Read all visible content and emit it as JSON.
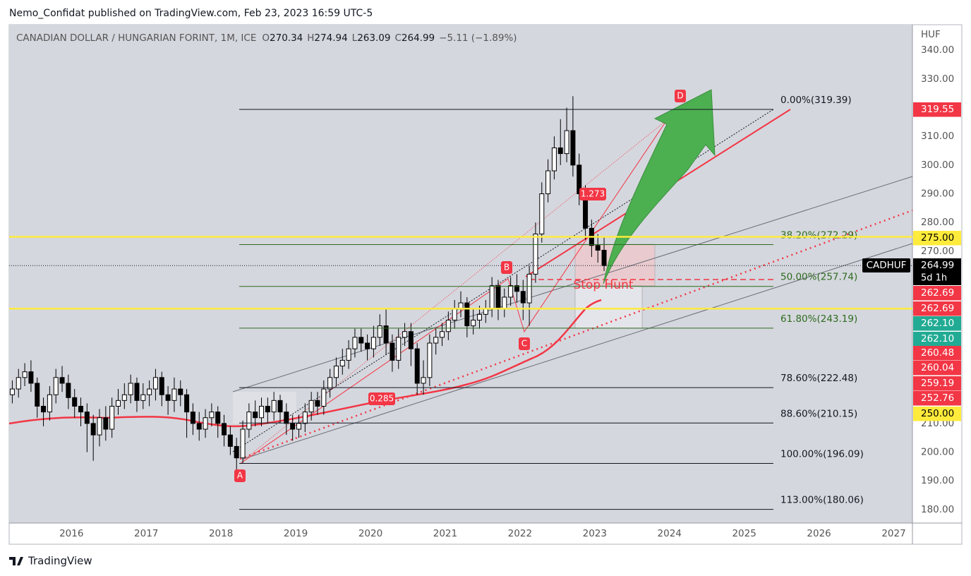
{
  "header": {
    "publisher": "Nemo_Confidat published on TradingView.com, Feb 23, 2023 16:59 UTC-5"
  },
  "footer": {
    "brand": "TradingView"
  },
  "chart_data": {
    "type": "candlestick",
    "title": "CANADIAN DOLLAR / HUNGARIAN FORINT, 1M, ICE",
    "ohlc": [
      {
        "key": "O",
        "value": 270.34
      },
      {
        "key": "H",
        "value": 274.94
      },
      {
        "key": "L",
        "value": 263.09
      },
      {
        "key": "C",
        "value": 264.99
      }
    ],
    "change": "−5.11 (−1.89%)",
    "y_axis_label": "HUF",
    "x": [
      "2015-03",
      "2015-04",
      "2015-05",
      "2015-06",
      "2015-07",
      "2015-08",
      "2015-09",
      "2015-10",
      "2015-11",
      "2015-12",
      "2016-01",
      "2016-02",
      "2016-03",
      "2016-04",
      "2016-05",
      "2016-06",
      "2016-07",
      "2016-08",
      "2016-09",
      "2016-10",
      "2016-11",
      "2016-12",
      "2017-01",
      "2017-02",
      "2017-03",
      "2017-04",
      "2017-05",
      "2017-06",
      "2017-07",
      "2017-08",
      "2017-09",
      "2017-10",
      "2017-11",
      "2017-12",
      "2018-01",
      "2018-02",
      "2018-03",
      "2018-04",
      "2018-05",
      "2018-06",
      "2018-07",
      "2018-08",
      "2018-09",
      "2018-10",
      "2018-11",
      "2018-12",
      "2019-01",
      "2019-02",
      "2019-03",
      "2019-04",
      "2019-05",
      "2019-06",
      "2019-07",
      "2019-08",
      "2019-09",
      "2019-10",
      "2019-11",
      "2019-12",
      "2020-01",
      "2020-02",
      "2020-03",
      "2020-04",
      "2020-05",
      "2020-06",
      "2020-07",
      "2020-08",
      "2020-09",
      "2020-10",
      "2020-11",
      "2020-12",
      "2021-01",
      "2021-02",
      "2021-03",
      "2021-04",
      "2021-05",
      "2021-06",
      "2021-07",
      "2021-08",
      "2021-09",
      "2021-10",
      "2021-11",
      "2021-12",
      "2022-01",
      "2022-02",
      "2022-03",
      "2022-04",
      "2022-05",
      "2022-06",
      "2022-07",
      "2022-08",
      "2022-09",
      "2022-10",
      "2022-11",
      "2022-12",
      "2023-01",
      "2023-02"
    ],
    "open": [
      220,
      222,
      226,
      228,
      224,
      216,
      214,
      220,
      226,
      224,
      219,
      216,
      214,
      210,
      206,
      212,
      208,
      216,
      218,
      220,
      224,
      218,
      220,
      222,
      226,
      220,
      218,
      222,
      220,
      214,
      210,
      208,
      212,
      214,
      210,
      206,
      202,
      198,
      208,
      214,
      212,
      216,
      214,
      218,
      214,
      210,
      208,
      210,
      214,
      218,
      216,
      222,
      226,
      230,
      232,
      236,
      240,
      238,
      236,
      240,
      244,
      238,
      232,
      240,
      242,
      236,
      224,
      226,
      238,
      240,
      242,
      246,
      250,
      252,
      244,
      246,
      248,
      250,
      258,
      250,
      254,
      258,
      256,
      252,
      262,
      276,
      290,
      298,
      306,
      304,
      312,
      300,
      290,
      278,
      272,
      270.34
    ],
    "high": [
      225,
      229,
      231,
      232,
      226,
      219,
      223,
      229,
      230,
      227,
      222,
      219,
      217,
      213,
      215,
      216,
      219,
      222,
      224,
      227,
      226,
      224,
      225,
      229,
      228,
      223,
      226,
      225,
      222,
      217,
      214,
      215,
      217,
      216,
      213,
      209,
      205,
      211,
      217,
      218,
      219,
      219,
      221,
      220,
      217,
      213,
      213,
      217,
      221,
      221,
      225,
      229,
      233,
      236,
      239,
      243,
      243,
      241,
      244,
      248,
      250,
      241,
      243,
      245,
      245,
      238,
      232,
      241,
      243,
      245,
      249,
      253,
      256,
      254,
      250,
      251,
      253,
      261,
      260,
      257,
      261,
      262,
      260,
      265,
      280,
      294,
      302,
      310,
      316,
      320,
      324,
      304,
      293,
      281,
      276,
      274.94
    ],
    "low": [
      217,
      219,
      223,
      221,
      212,
      209,
      211,
      217,
      221,
      215,
      212,
      209,
      200,
      197,
      202,
      204,
      205,
      213,
      215,
      217,
      214,
      215,
      216,
      218,
      216,
      213,
      214,
      216,
      205,
      206,
      204,
      205,
      209,
      205,
      202,
      199,
      193,
      196,
      205,
      209,
      209,
      210,
      211,
      210,
      206,
      204,
      205,
      207,
      211,
      213,
      213,
      219,
      223,
      227,
      229,
      233,
      235,
      232,
      233,
      237,
      234,
      228,
      229,
      237,
      230,
      220,
      220,
      223,
      234,
      237,
      239,
      243,
      247,
      240,
      241,
      243,
      245,
      247,
      246,
      247,
      251,
      252,
      246,
      244,
      259,
      273,
      287,
      295,
      300,
      301,
      296,
      286,
      274,
      268,
      266,
      263.09
    ],
    "close": [
      222,
      226,
      228,
      224,
      216,
      214,
      220,
      226,
      224,
      219,
      216,
      214,
      210,
      206,
      212,
      208,
      216,
      218,
      220,
      224,
      218,
      220,
      222,
      226,
      220,
      218,
      222,
      220,
      214,
      210,
      208,
      212,
      214,
      210,
      206,
      202,
      198,
      208,
      214,
      212,
      216,
      214,
      218,
      214,
      210,
      208,
      210,
      214,
      218,
      216,
      222,
      226,
      230,
      232,
      236,
      240,
      238,
      236,
      240,
      244,
      238,
      232,
      240,
      242,
      236,
      224,
      226,
      238,
      240,
      242,
      246,
      250,
      252,
      244,
      246,
      248,
      250,
      258,
      250,
      254,
      258,
      256,
      252,
      262,
      276,
      290,
      298,
      306,
      304,
      312,
      300,
      290,
      278,
      272,
      270.34,
      264.99
    ],
    "up_color": "#ffffff",
    "down_color": "#000000",
    "xlim": [
      "2015-03",
      "2027-04"
    ],
    "xticks": [
      2016,
      2017,
      2018,
      2019,
      2020,
      2021,
      2022,
      2023,
      2024,
      2025,
      2026,
      2027
    ],
    "ylim": [
      175.3,
      348.9
    ],
    "yticks": [
      {
        "value": 340,
        "label": "340.00"
      },
      {
        "value": 330,
        "label": "330.00"
      },
      {
        "value": 310,
        "label": "310.00"
      },
      {
        "value": 300,
        "label": "300.00"
      },
      {
        "value": 290,
        "label": "290.00"
      },
      {
        "value": 280,
        "label": "280.00"
      },
      {
        "value": 270,
        "label": "270.00"
      },
      {
        "value": 210,
        "label": "210.00"
      },
      {
        "value": 200,
        "label": "200.00"
      },
      {
        "value": 190,
        "label": "190.00"
      },
      {
        "value": 180,
        "label": "180.00"
      }
    ],
    "grid": true,
    "fib_levels": [
      {
        "label": "0.00%(319.39)",
        "value": 319.39,
        "color": "#131722"
      },
      {
        "label": "38.20%(272.29)",
        "value": 272.29,
        "color": "#2e6b1f"
      },
      {
        "label": "50.00%(257.74)",
        "value": 257.74,
        "color": "#2e6b1f"
      },
      {
        "label": "61.80%(243.19)",
        "value": 243.19,
        "color": "#2e6b1f"
      },
      {
        "label": "78.60%(222.48)",
        "value": 222.48,
        "color": "#131722"
      },
      {
        "label": "88.60%(210.15)",
        "value": 210.15,
        "color": "#131722"
      },
      {
        "label": "100.00%(196.09)",
        "value": 196.09,
        "color": "#131722"
      },
      {
        "label": "113.00%(180.06)",
        "value": 180.06,
        "color": "#131722"
      }
    ],
    "price_badges": [
      {
        "value": 319.55,
        "label": "319.55",
        "color": "#f23645",
        "text_color": "#ffffff"
      },
      {
        "value": 275,
        "label": "275.00",
        "color": "#ffeb3b",
        "text_color": "#000000",
        "line": true
      },
      {
        "value": 264.99,
        "label": "264.99",
        "color": "#000000",
        "text_color": "#ffffff",
        "symbol": "CADHUF",
        "countdown": "5d 1h"
      },
      {
        "value": 262.69,
        "label": "262.69",
        "color": "#f23645",
        "text_color": "#ffffff"
      },
      {
        "value": 262.69,
        "label": "262.69",
        "color": "#f23645",
        "text_color": "#ffffff"
      },
      {
        "value": 262.1,
        "label": "262.10",
        "color": "#22ab94",
        "text_color": "#ffffff"
      },
      {
        "value": 262.1,
        "label": "262.10",
        "color": "#22ab94",
        "text_color": "#ffffff"
      },
      {
        "value": 260.48,
        "label": "260.48",
        "color": "#f23645",
        "text_color": "#ffffff"
      },
      {
        "value": 260.04,
        "label": "260.04",
        "color": "#f23645",
        "text_color": "#ffffff"
      },
      {
        "value": 259.19,
        "label": "259.19",
        "color": "#f23645",
        "text_color": "#ffffff"
      },
      {
        "value": 252.76,
        "label": "252.76",
        "color": "#f23645",
        "text_color": "#ffffff"
      },
      {
        "value": 250,
        "label": "250.00",
        "color": "#ffeb3b",
        "text_color": "#000000",
        "line": true
      }
    ],
    "annotations": [
      "A",
      "B",
      "C",
      "D",
      "0.285",
      "1.273",
      "Stop Hunt"
    ]
  }
}
